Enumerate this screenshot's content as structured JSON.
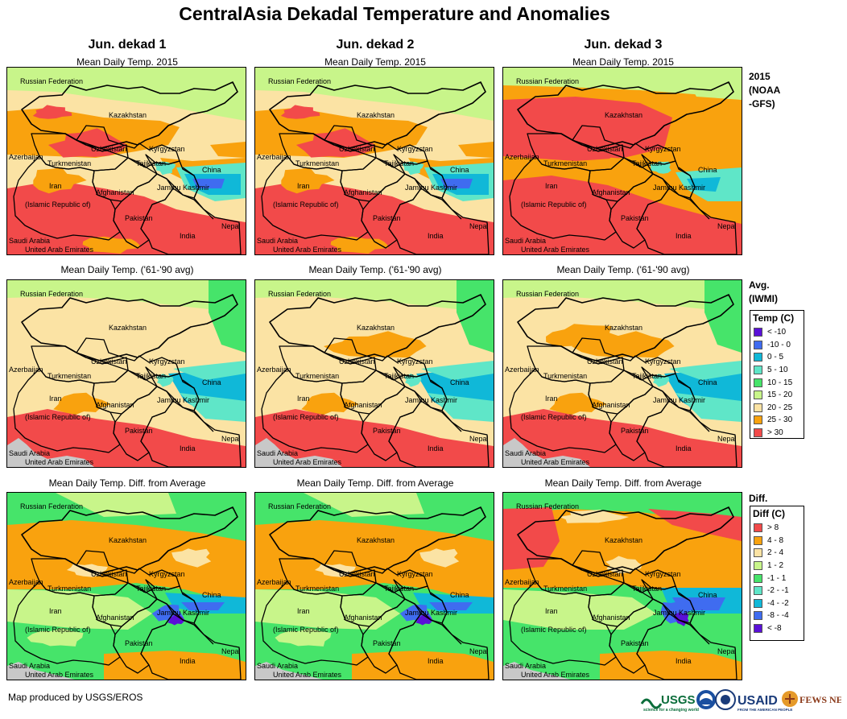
{
  "title": "CentralAsia Dekadal Temperature and Anomalies",
  "columns": [
    "Jun. dekad 1",
    "Jun. dekad 2",
    "Jun. dekad 3"
  ],
  "rows": [
    {
      "panel_title": "Mean Daily Temp. 2015",
      "side_label_lines": [
        "2015",
        "(NOAA",
        "-GFS)"
      ]
    },
    {
      "panel_title": "Mean Daily Temp. ('61-'90 avg)",
      "side_label_lines": [
        "Avg.",
        "(IWMI)"
      ]
    },
    {
      "panel_title": "Mean Daily Temp. Diff. from Average",
      "side_label_lines": [
        "Diff."
      ]
    }
  ],
  "map_labels": {
    "russia": "Russian Federation",
    "kazakhstan": "Kazakhstan",
    "uzbekistan": "Uzbekistan",
    "kyrgyzstan": "Kyrgyzstan",
    "tajikistan": "Tajikistan",
    "azerbaijan": "Azerbaijan",
    "turkmenistan": "Turkmenistan",
    "china": "China",
    "iran": "Iran",
    "iran2": "(Islamic Republic of)",
    "afghanistan": "Afghanistan",
    "jammu": "Jammu Kashmir",
    "pakistan": "Pakistan",
    "nepal": "Nepal",
    "india": "India",
    "saudi": "Saudi Arabia",
    "uae": "United Arab Emirates"
  },
  "temp_legend": {
    "title": "Temp (C)",
    "items": [
      {
        "label": "< -10",
        "color": "#5a10d8"
      },
      {
        "label": "-10 - 0",
        "color": "#3f6cf0"
      },
      {
        "label": "0 - 5",
        "color": "#10b8d8"
      },
      {
        "label": "5 - 10",
        "color": "#5fe6c8"
      },
      {
        "label": "10 - 15",
        "color": "#46e46a"
      },
      {
        "label": "15 - 20",
        "color": "#c8f58a"
      },
      {
        "label": "20 - 25",
        "color": "#fbe3a4"
      },
      {
        "label": "25 - 30",
        "color": "#f9a20e"
      },
      {
        "label": "> 30",
        "color": "#f24a4a"
      }
    ]
  },
  "diff_legend": {
    "title": "Diff (C)",
    "items": [
      {
        "label": "> 8",
        "color": "#f24a4a"
      },
      {
        "label": "4 - 8",
        "color": "#f9a20e"
      },
      {
        "label": "2 - 4",
        "color": "#fbe3a4"
      },
      {
        "label": "1 - 2",
        "color": "#c8f58a"
      },
      {
        "label": "-1 - 1",
        "color": "#46e46a"
      },
      {
        "label": "-2 - -1",
        "color": "#5fe6c8"
      },
      {
        "label": "-4 - -2",
        "color": "#10b8d8"
      },
      {
        "label": "-8 - -4",
        "color": "#3f6cf0"
      },
      {
        "label": "< -8",
        "color": "#5a10d8"
      }
    ]
  },
  "credit": "Map produced by USGS/EROS",
  "logos": {
    "usgs": "USGS",
    "usgs_tagline": "science for a changing world",
    "usaid": "USAID",
    "usaid_tagline": "FROM THE AMERICAN PEOPLE",
    "fews": "FEWS NET"
  },
  "colors": {
    "red": "#f24a4a",
    "orange": "#f9a20e",
    "tan": "#fbe3a4",
    "lime": "#c8f58a",
    "green": "#46e46a",
    "mint": "#5fe6c8",
    "cyan": "#10b8d8",
    "blue": "#3f6cf0",
    "purple": "#5a10d8",
    "nodata": "#c8c8c8"
  }
}
